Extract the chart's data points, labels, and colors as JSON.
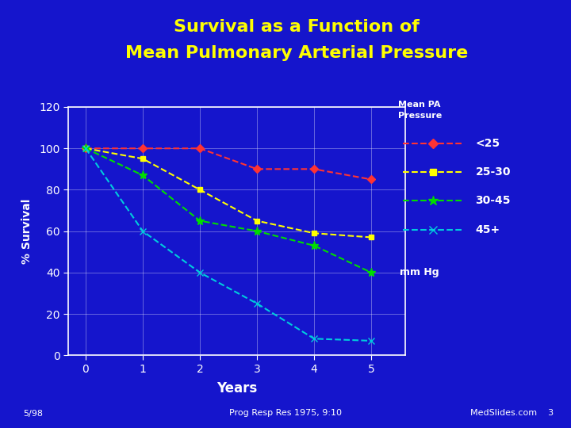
{
  "title_line1": "Survival as a Function of",
  "title_line2": "Mean Pulmonary Arterial Pressure",
  "title_color": "#FFFF00",
  "background_color": "#1515CC",
  "plot_bg_color": "#1515CC",
  "xlabel": "Years",
  "ylabel": "% Survival",
  "xlabel_color": "#FFFFFF",
  "ylabel_color": "#FFFFFF",
  "tick_color": "#FFFFFF",
  "grid_color": "#FFFFFF",
  "xlim": [
    -0.3,
    5.6
  ],
  "ylim": [
    0,
    120
  ],
  "xticks": [
    0,
    1,
    2,
    3,
    4,
    5
  ],
  "yticks": [
    0,
    20,
    40,
    60,
    80,
    100,
    120
  ],
  "legend_title_line1": "Mean PA",
  "legend_title_line2": "Pressure",
  "legend_footer": "mm Hg",
  "series": [
    {
      "label": "<25",
      "x": [
        0,
        1,
        2,
        3,
        4,
        5
      ],
      "y": [
        100,
        100,
        100,
        90,
        90,
        85
      ],
      "color": "#FF3333",
      "marker": "D",
      "markersize": 5,
      "linestyle": "--"
    },
    {
      "label": "25-30",
      "x": [
        0,
        1,
        2,
        3,
        4,
        5
      ],
      "y": [
        100,
        95,
        80,
        65,
        59,
        57
      ],
      "color": "#FFFF00",
      "marker": "s",
      "markersize": 5,
      "linestyle": "--"
    },
    {
      "label": "30-45",
      "x": [
        0,
        1,
        2,
        3,
        4,
        5
      ],
      "y": [
        100,
        87,
        65,
        60,
        53,
        40
      ],
      "color": "#00DD00",
      "marker": "*",
      "markersize": 8,
      "linestyle": "--"
    },
    {
      "label": "45+",
      "x": [
        0,
        1,
        2,
        3,
        4,
        5
      ],
      "y": [
        100,
        60,
        40,
        25,
        8,
        7
      ],
      "color": "#00CCDD",
      "marker": "x",
      "markersize": 6,
      "linestyle": "--"
    }
  ],
  "footnote_left": "5/98",
  "footnote_center": "Prog Resp Res 1975, 9:10",
  "footnote_right": "MedSlides.com    3",
  "footnote_color": "#FFFFFF"
}
